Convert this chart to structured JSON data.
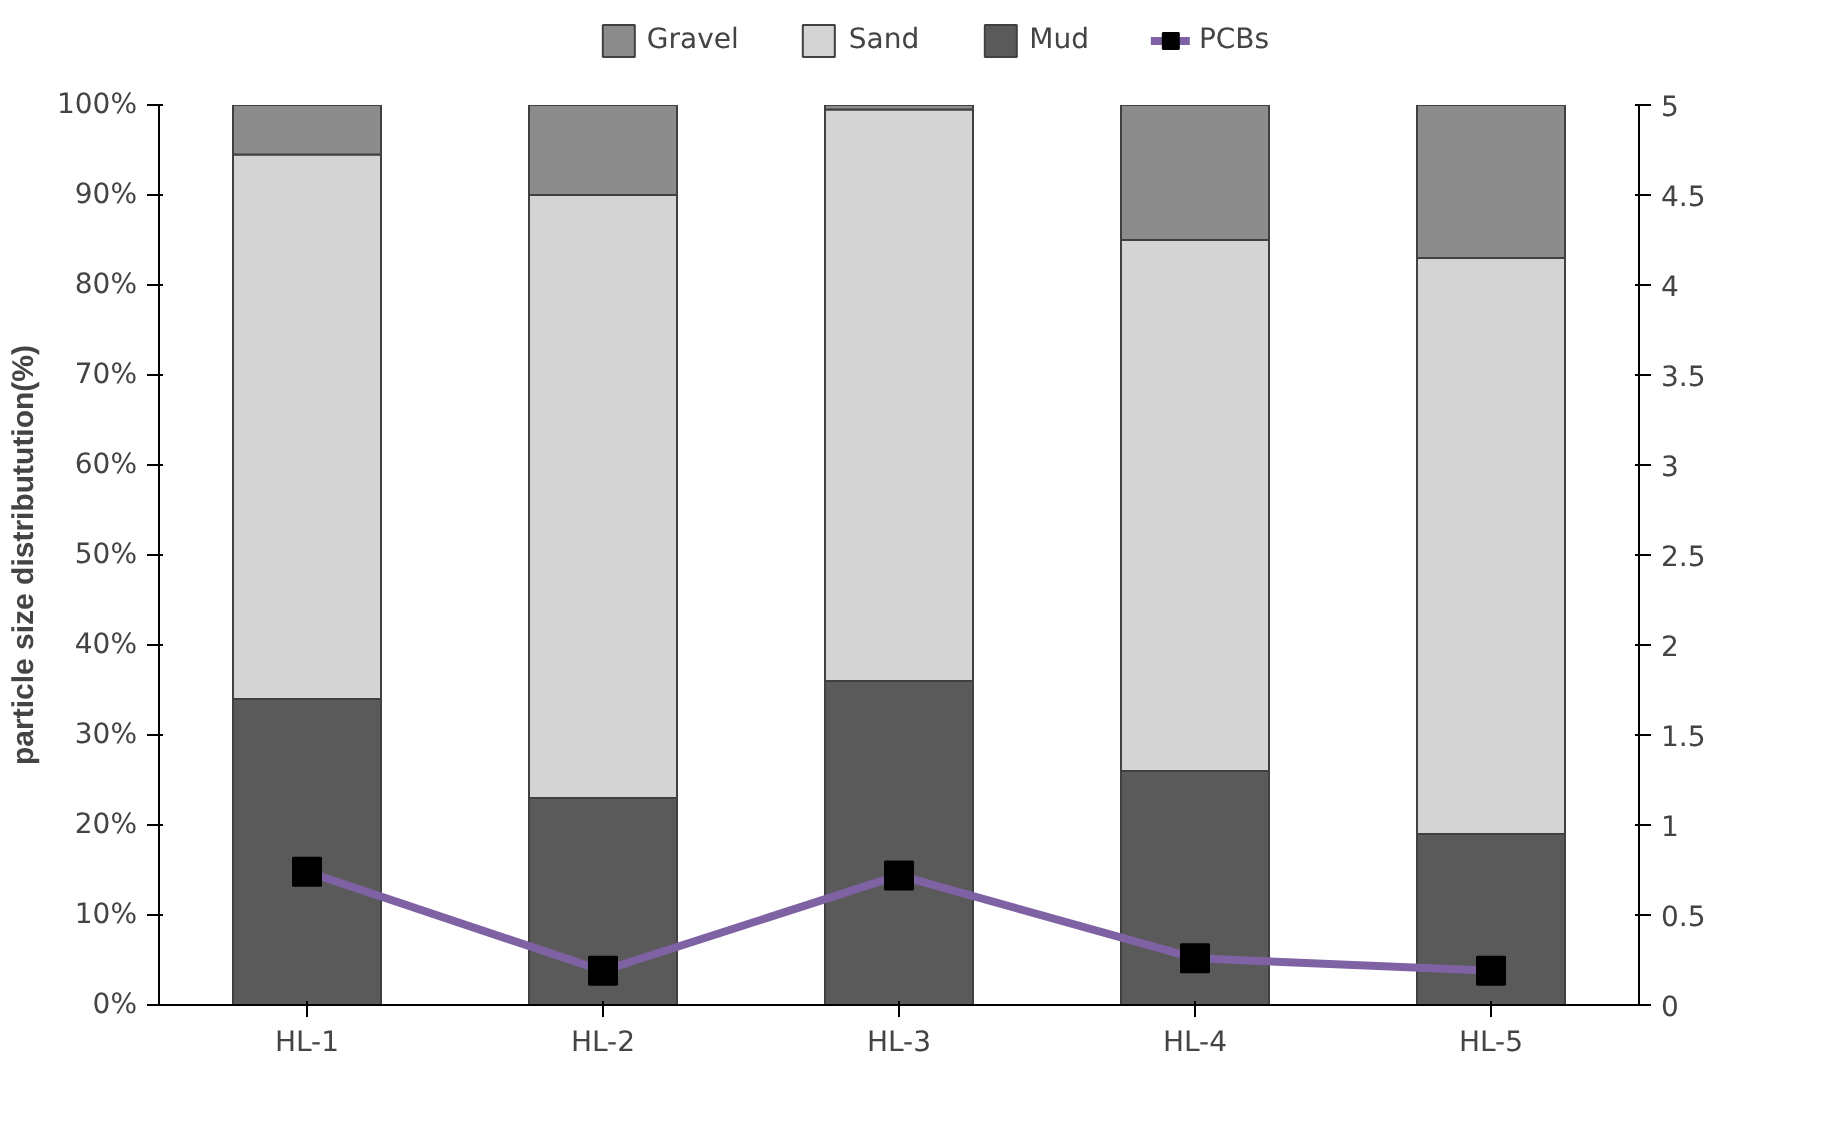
{
  "chart_data": {
    "type": "bar",
    "stacked": true,
    "ylabel": "particle size distributution(%)",
    "categories": [
      "HL-1",
      "HL-2",
      "HL-3",
      "HL-4",
      "HL-5"
    ],
    "ylim": [
      0,
      100
    ],
    "yticks": [
      {
        "value": 0,
        "label": "0%"
      },
      {
        "value": 10,
        "label": "10%"
      },
      {
        "value": 20,
        "label": "20%"
      },
      {
        "value": 30,
        "label": "30%"
      },
      {
        "value": 40,
        "label": "40%"
      },
      {
        "value": 50,
        "label": "50%"
      },
      {
        "value": 60,
        "label": "60%"
      },
      {
        "value": 70,
        "label": "70%"
      },
      {
        "value": 80,
        "label": "80%"
      },
      {
        "value": 90,
        "label": "90%"
      },
      {
        "value": 100,
        "label": "100%"
      }
    ],
    "y2lim": [
      0,
      5
    ],
    "y2ticks": [
      0,
      0.5,
      1,
      1.5,
      2,
      2.5,
      3,
      3.5,
      4,
      4.5,
      5
    ],
    "legend": "top",
    "grid": false,
    "series": [
      {
        "name": "Mud",
        "color": "#5a5a5a",
        "values": [
          34,
          23,
          36,
          26,
          19
        ]
      },
      {
        "name": "Sand",
        "color": "#d4d4d4",
        "values": [
          60.5,
          67,
          63.5,
          59,
          64
        ]
      },
      {
        "name": "Gravel",
        "color": "#8c8c8c",
        "values": [
          5.5,
          10,
          0.5,
          15,
          17
        ]
      },
      {
        "name": "PCBs",
        "type": "line",
        "axis": "y2",
        "marker": "square",
        "color": "#7f62a3",
        "values": [
          0.74,
          0.19,
          0.72,
          0.26,
          0.19
        ]
      }
    ]
  }
}
